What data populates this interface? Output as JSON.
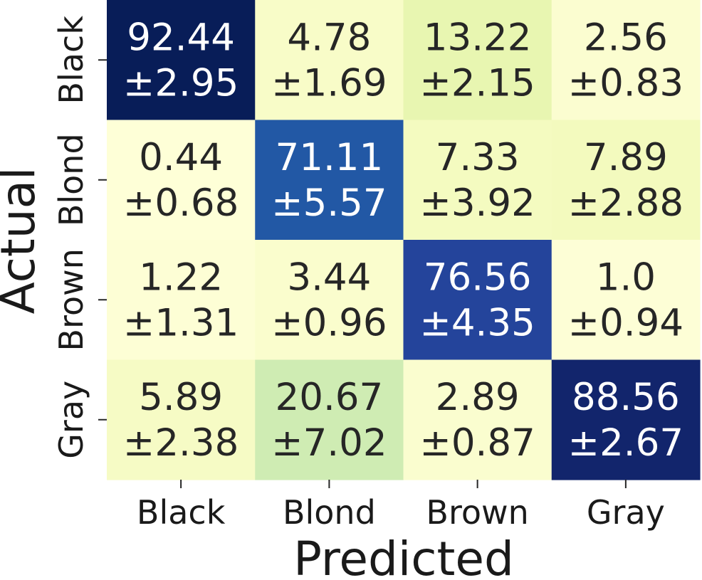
{
  "chart_data": {
    "type": "heatmap",
    "xlabel": "Predicted",
    "ylabel": "Actual",
    "x_categories": [
      "Black",
      "Blond",
      "Brown",
      "Gray"
    ],
    "y_categories": [
      "Black",
      "Blond",
      "Brown",
      "Gray"
    ],
    "values": [
      [
        92.44,
        4.78,
        13.22,
        2.56
      ],
      [
        0.44,
        71.11,
        7.33,
        7.89
      ],
      [
        1.22,
        3.44,
        76.56,
        1.0
      ],
      [
        5.89,
        20.67,
        2.89,
        88.56
      ]
    ],
    "value_labels": [
      [
        "92.44",
        "4.78",
        "13.22",
        "2.56"
      ],
      [
        "0.44",
        "71.11",
        "7.33",
        "7.89"
      ],
      [
        "1.22",
        "3.44",
        "76.56",
        "1.0"
      ],
      [
        "5.89",
        "20.67",
        "2.89",
        "88.56"
      ]
    ],
    "errors": [
      [
        "±2.95",
        "±1.69",
        "±2.15",
        "±0.83"
      ],
      [
        "±0.68",
        "±5.57",
        "±3.92",
        "±2.88"
      ],
      [
        "±1.31",
        "±0.96",
        "±4.35",
        "±0.94"
      ],
      [
        "±2.38",
        "±7.02",
        "±0.87",
        "±2.67"
      ]
    ],
    "colormap": "YlGnBu",
    "vmin": 0,
    "vmax": 92.44,
    "colorbar": false
  }
}
